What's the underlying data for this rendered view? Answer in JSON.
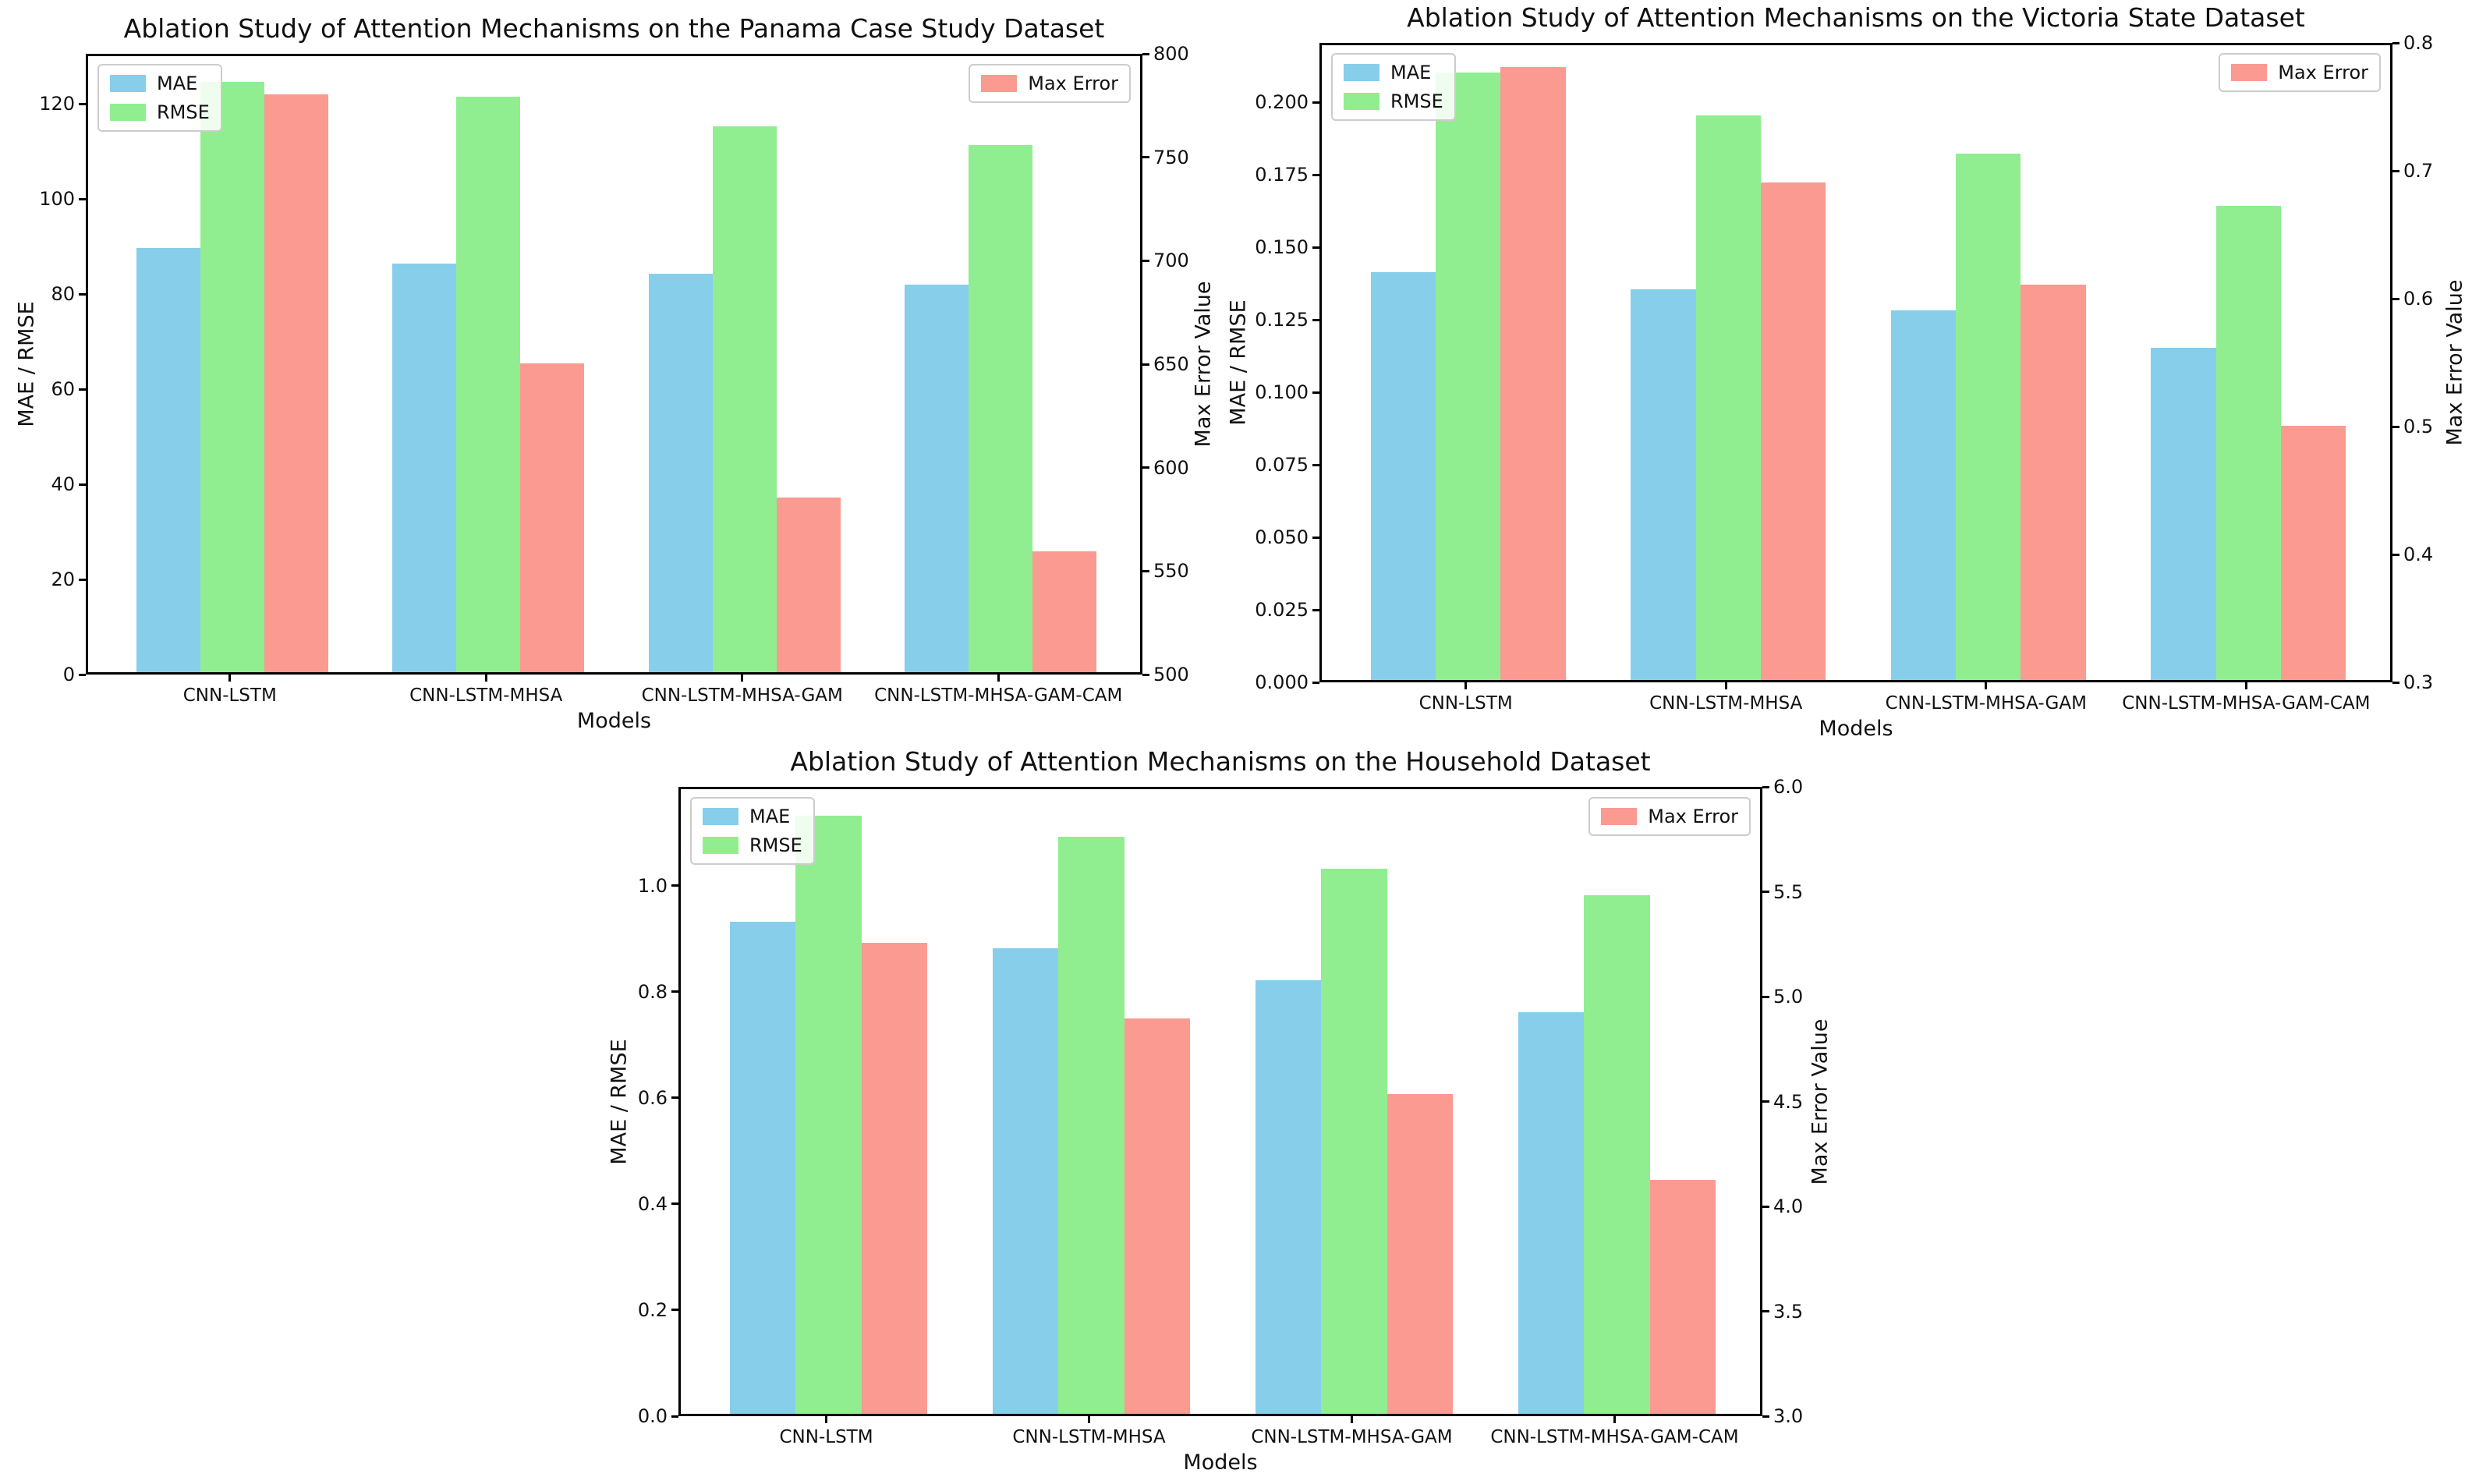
{
  "figure": {
    "background": "#ffffff",
    "colors": {
      "mae": "#87CEEB",
      "rmse": "#90EE90",
      "max_error": "#FA9A90"
    }
  },
  "chart_data": [
    {
      "type": "bar",
      "title": "Ablation Study of Attention Mechanisms on the Panama Case Study Dataset",
      "xlabel": "Models",
      "ylabel_left": "MAE / RMSE",
      "ylabel_right": "Max Error Value",
      "categories": [
        "CNN-LSTM",
        "CNN-LSTM-MHSA",
        "CNN-LSTM-MHSA-GAM",
        "CNN-LSTM-MHSA-GAM-CAM"
      ],
      "series": [
        {
          "name": "MAE",
          "axis": "left",
          "color_key": "mae",
          "values": [
            89.5,
            86.2,
            84.0,
            81.8
          ]
        },
        {
          "name": "RMSE",
          "axis": "left",
          "color_key": "rmse",
          "values": [
            124.3,
            121.2,
            115.0,
            111.0
          ]
        },
        {
          "name": "Max Error",
          "axis": "right",
          "color_key": "max_error",
          "values": [
            780,
            650,
            585,
            559
          ]
        }
      ],
      "ylim_left": [
        0,
        130.5
      ],
      "ylim_right": [
        500,
        800
      ],
      "yticks_left": {
        "values": [
          0,
          20,
          40,
          60,
          80,
          100,
          120
        ],
        "labels": [
          "0",
          "20",
          "40",
          "60",
          "80",
          "100",
          "120"
        ]
      },
      "yticks_right": {
        "values": [
          500,
          550,
          600,
          650,
          700,
          750,
          800
        ],
        "labels": [
          "500",
          "550",
          "600",
          "650",
          "700",
          "750",
          "800"
        ]
      },
      "legend_left": [
        "MAE",
        "RMSE"
      ],
      "legend_right": [
        "Max Error"
      ],
      "legend_position": {
        "left": "upper left",
        "right": "upper right"
      },
      "grid": false
    },
    {
      "type": "bar",
      "title": "Ablation Study of Attention Mechanisms on the Victoria State Dataset",
      "xlabel": "Models",
      "ylabel_left": "MAE / RMSE",
      "ylabel_right": "Max Error Value",
      "categories": [
        "CNN-LSTM",
        "CNN-LSTM-MHSA",
        "CNN-LSTM-MHSA-GAM",
        "CNN-LSTM-MHSA-GAM-CAM"
      ],
      "series": [
        {
          "name": "MAE",
          "axis": "left",
          "color_key": "mae",
          "values": [
            0.141,
            0.135,
            0.128,
            0.115
          ]
        },
        {
          "name": "RMSE",
          "axis": "left",
          "color_key": "rmse",
          "values": [
            0.21,
            0.195,
            0.182,
            0.164
          ]
        },
        {
          "name": "Max Error",
          "axis": "right",
          "color_key": "max_error",
          "values": [
            0.78,
            0.69,
            0.61,
            0.5
          ]
        }
      ],
      "ylim_left": [
        0,
        0.2205
      ],
      "ylim_right": [
        0.3,
        0.8
      ],
      "yticks_left": {
        "values": [
          0.0,
          0.025,
          0.05,
          0.075,
          0.1,
          0.125,
          0.15,
          0.175,
          0.2
        ],
        "labels": [
          "0.000",
          "0.025",
          "0.050",
          "0.075",
          "0.100",
          "0.125",
          "0.150",
          "0.175",
          "0.200"
        ]
      },
      "yticks_right": {
        "values": [
          0.3,
          0.4,
          0.5,
          0.6,
          0.7,
          0.8
        ],
        "labels": [
          "0.3",
          "0.4",
          "0.5",
          "0.6",
          "0.7",
          "0.8"
        ]
      },
      "legend_left": [
        "MAE",
        "RMSE"
      ],
      "legend_right": [
        "Max Error"
      ],
      "legend_position": {
        "left": "upper left",
        "right": "upper right"
      },
      "grid": false
    },
    {
      "type": "bar",
      "title": "Ablation Study of Attention Mechanisms on the Household Dataset",
      "xlabel": "Models",
      "ylabel_left": "MAE / RMSE",
      "ylabel_right": "Max Error Value",
      "categories": [
        "CNN-LSTM",
        "CNN-LSTM-MHSA",
        "CNN-LSTM-MHSA-GAM",
        "CNN-LSTM-MHSA-GAM-CAM"
      ],
      "series": [
        {
          "name": "MAE",
          "axis": "left",
          "color_key": "mae",
          "values": [
            0.93,
            0.88,
            0.82,
            0.76
          ]
        },
        {
          "name": "RMSE",
          "axis": "left",
          "color_key": "rmse",
          "values": [
            1.13,
            1.09,
            1.03,
            0.98
          ]
        },
        {
          "name": "Max Error",
          "axis": "right",
          "color_key": "max_error",
          "values": [
            5.25,
            4.89,
            4.53,
            4.12
          ]
        }
      ],
      "ylim_left": [
        0,
        1.1865
      ],
      "ylim_right": [
        3.0,
        6.0
      ],
      "yticks_left": {
        "values": [
          0.0,
          0.2,
          0.4,
          0.6,
          0.8,
          1.0
        ],
        "labels": [
          "0.0",
          "0.2",
          "0.4",
          "0.6",
          "0.8",
          "1.0"
        ]
      },
      "yticks_right": {
        "values": [
          3.0,
          3.5,
          4.0,
          4.5,
          5.0,
          5.5,
          6.0
        ],
        "labels": [
          "3.0",
          "3.5",
          "4.0",
          "4.5",
          "5.0",
          "5.5",
          "6.0"
        ]
      },
      "legend_left": [
        "MAE",
        "RMSE"
      ],
      "legend_right": [
        "Max Error"
      ],
      "legend_position": {
        "left": "upper left",
        "right": "upper right"
      },
      "grid": false
    }
  ]
}
